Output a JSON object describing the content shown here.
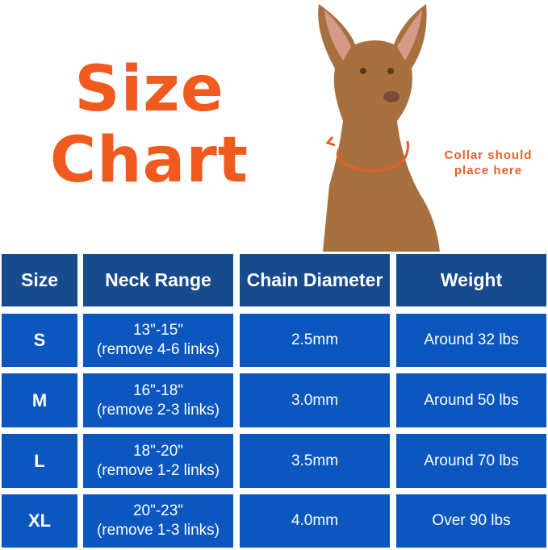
{
  "title": {
    "line1": "Size",
    "line2": "Chart"
  },
  "note": {
    "line1": "Collar should",
    "line2": "place here"
  },
  "colors": {
    "title": "#f05a1e",
    "header": "#184a8e",
    "cell": "#0b57bf"
  },
  "table": {
    "headers": [
      "Size",
      "Neck Range",
      "Chain Diameter",
      "Weight"
    ],
    "rows": [
      {
        "size": "S",
        "range": "13\"-15\"",
        "links": "(remove 4-6 links)",
        "diameter": "2.5mm",
        "weight": "Around 32 lbs"
      },
      {
        "size": "M",
        "range": "16\"-18\"",
        "links": "(remove 2-3 links)",
        "diameter": "3.0mm",
        "weight": "Around 50 lbs"
      },
      {
        "size": "L",
        "range": "18\"-20\"",
        "links": "(remove 1-2 links)",
        "diameter": "3.5mm",
        "weight": "Around 70 lbs"
      },
      {
        "size": "XL",
        "range": "20\"-23\"",
        "links": "(remove 1-3 links)",
        "diameter": "4.0mm",
        "weight": "Over 90 lbs"
      }
    ]
  }
}
